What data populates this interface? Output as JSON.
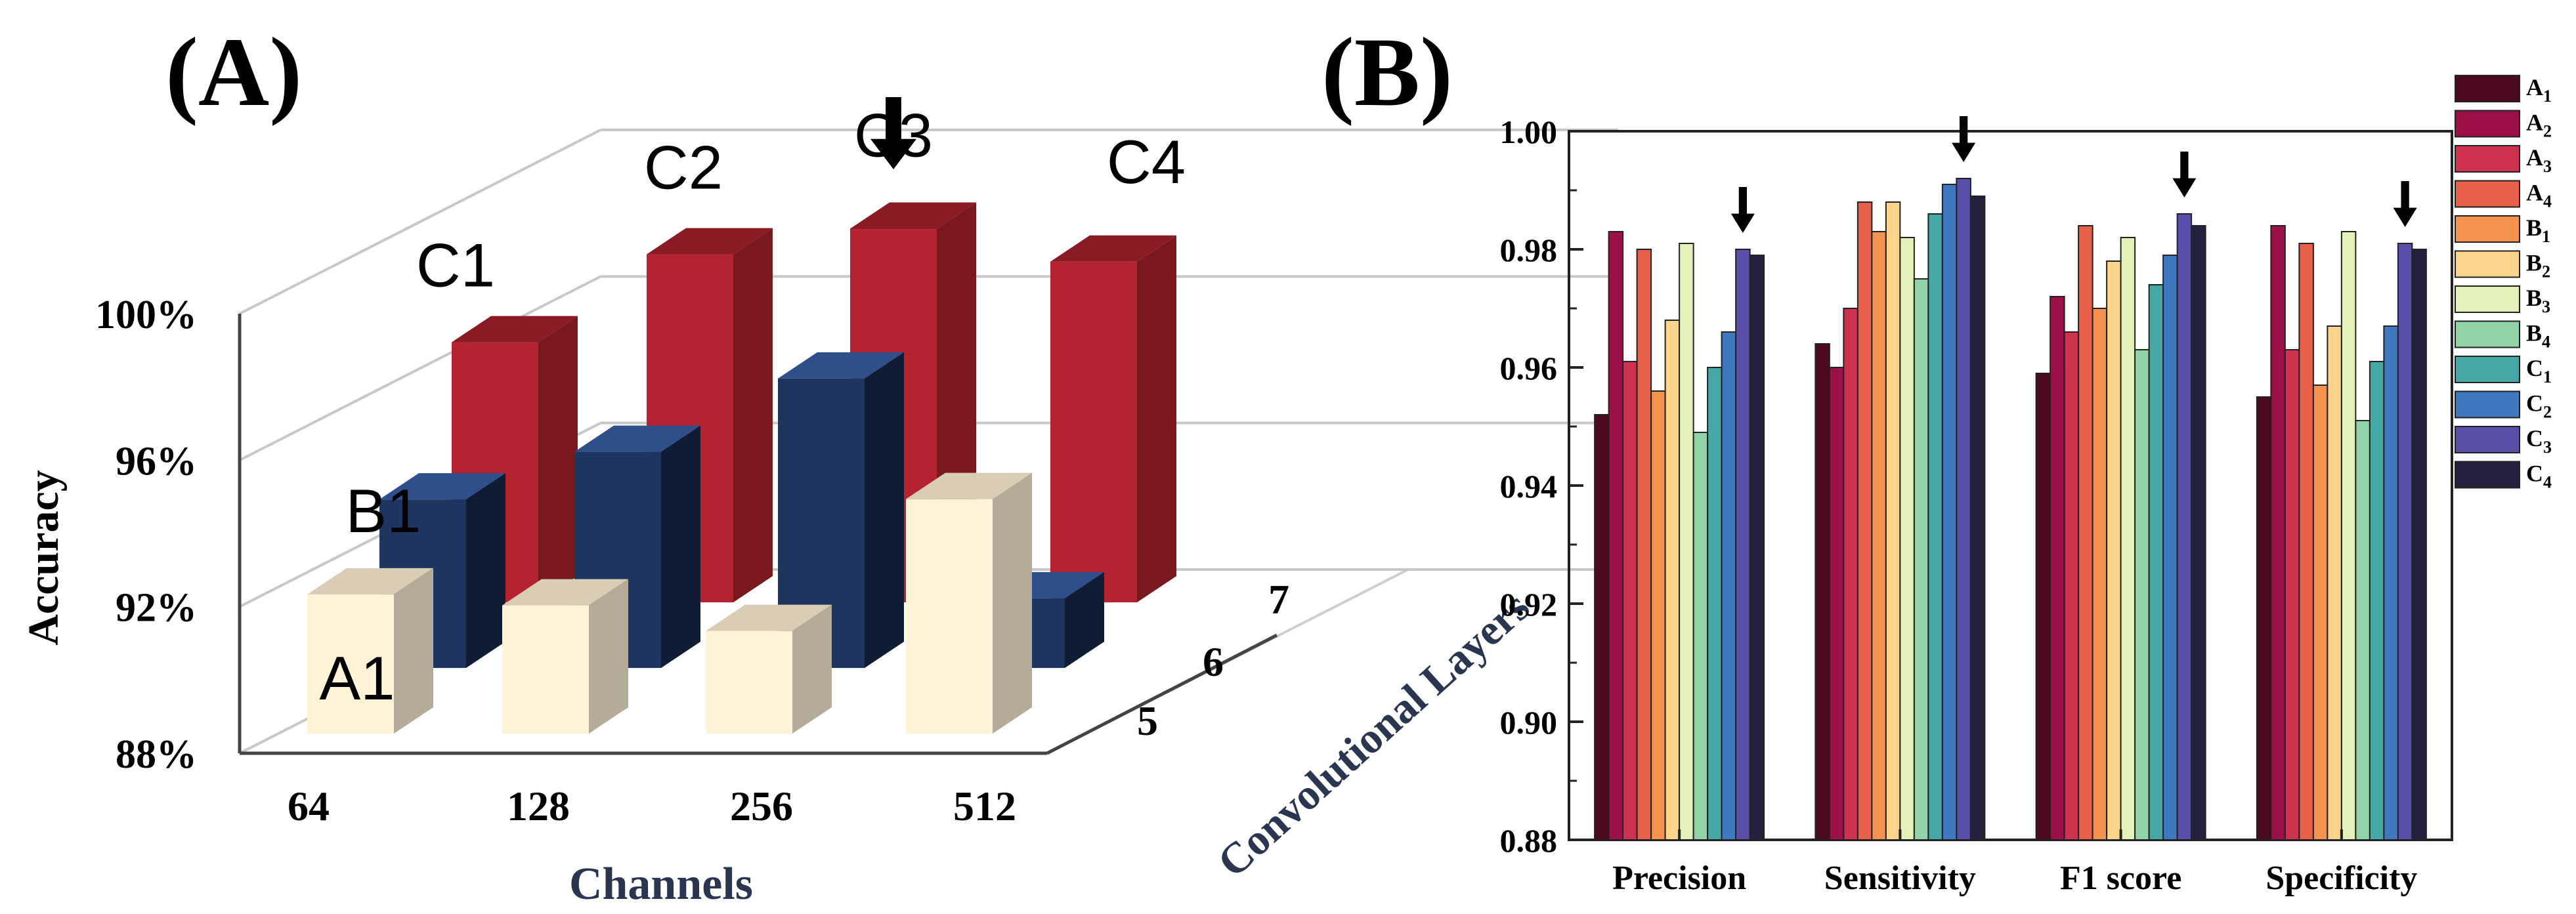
{
  "panel_a": {
    "label": "(A)",
    "chart_data": {
      "type": "bar3d",
      "ylabel": "Accuracy",
      "xlabel": "Channels",
      "zlabel": "Convolutional Layers",
      "y_ticks": [
        "88%",
        "92%",
        "96%",
        "100%"
      ],
      "ylim": [
        88,
        100
      ],
      "channels": [
        "64",
        "128",
        "256",
        "512"
      ],
      "layers": [
        "5",
        "6",
        "7"
      ],
      "series": [
        {
          "name": "A",
          "layer": "5",
          "color": "#fff3d8",
          "side": "#b4ac99",
          "top": "#d9ceb5",
          "values": [
            91.8,
            91.5,
            90.8,
            94.4
          ]
        },
        {
          "name": "B",
          "layer": "6",
          "color": "#1e3560",
          "side": "#101c33",
          "top": "#2e4f8a",
          "values": [
            92.6,
            93.9,
            95.9,
            89.9
          ]
        },
        {
          "name": "C",
          "layer": "7",
          "color": "#b52230",
          "side": "#7a1820",
          "top": "#8a1a24",
          "values": [
            95.1,
            97.5,
            98.2,
            97.3
          ]
        }
      ],
      "annotations": [
        {
          "text": "A1",
          "series": "A",
          "index": 0
        },
        {
          "text": "B1",
          "series": "B",
          "index": 0
        },
        {
          "text": "C1",
          "series": "C",
          "index": 0
        },
        {
          "text": "C2",
          "series": "C",
          "index": 1
        },
        {
          "text": "C3",
          "series": "C",
          "index": 2
        },
        {
          "text": "C4",
          "series": "C",
          "index": 3
        }
      ],
      "highlight": {
        "series": "C",
        "index": 2,
        "marker": "arrow"
      }
    }
  },
  "panel_b": {
    "label": "(B)",
    "chart_data": {
      "type": "bar",
      "categories": [
        "Precision",
        "Sensitivity",
        "F1 score",
        "Specificity"
      ],
      "ylim": [
        0.88,
        1.0
      ],
      "y_ticks": [
        "0.88",
        "0.90",
        "0.92",
        "0.94",
        "0.96",
        "0.98",
        "1.00"
      ],
      "series": [
        {
          "name": "A",
          "sub": "1",
          "color": "#4b0a1f",
          "values": [
            0.952,
            0.964,
            0.959,
            0.955
          ]
        },
        {
          "name": "A",
          "sub": "2",
          "color": "#9b1047",
          "values": [
            0.983,
            0.96,
            0.972,
            0.984
          ]
        },
        {
          "name": "A",
          "sub": "3",
          "color": "#cf3250",
          "values": [
            0.961,
            0.97,
            0.966,
            0.963
          ]
        },
        {
          "name": "A",
          "sub": "4",
          "color": "#e8604a",
          "values": [
            0.98,
            0.988,
            0.984,
            0.981
          ]
        },
        {
          "name": "B",
          "sub": "1",
          "color": "#f4924e",
          "values": [
            0.956,
            0.983,
            0.97,
            0.957
          ]
        },
        {
          "name": "B",
          "sub": "2",
          "color": "#fdd48c",
          "values": [
            0.968,
            0.988,
            0.978,
            0.967
          ]
        },
        {
          "name": "B",
          "sub": "3",
          "color": "#e3f2b8",
          "values": [
            0.981,
            0.982,
            0.982,
            0.983
          ]
        },
        {
          "name": "B",
          "sub": "4",
          "color": "#90d3a8",
          "values": [
            0.949,
            0.975,
            0.963,
            0.951
          ]
        },
        {
          "name": "C",
          "sub": "1",
          "color": "#46a8a4",
          "values": [
            0.96,
            0.986,
            0.974,
            0.961
          ]
        },
        {
          "name": "C",
          "sub": "2",
          "color": "#3f78be",
          "values": [
            0.966,
            0.991,
            0.979,
            0.967
          ]
        },
        {
          "name": "C",
          "sub": "3",
          "color": "#5a4fa8",
          "values": [
            0.98,
            0.992,
            0.986,
            0.981
          ]
        },
        {
          "name": "C",
          "sub": "4",
          "color": "#26203f",
          "values": [
            0.979,
            0.989,
            0.984,
            0.98
          ]
        }
      ],
      "highlight": {
        "series_index": 10,
        "marker": "arrow"
      }
    }
  }
}
